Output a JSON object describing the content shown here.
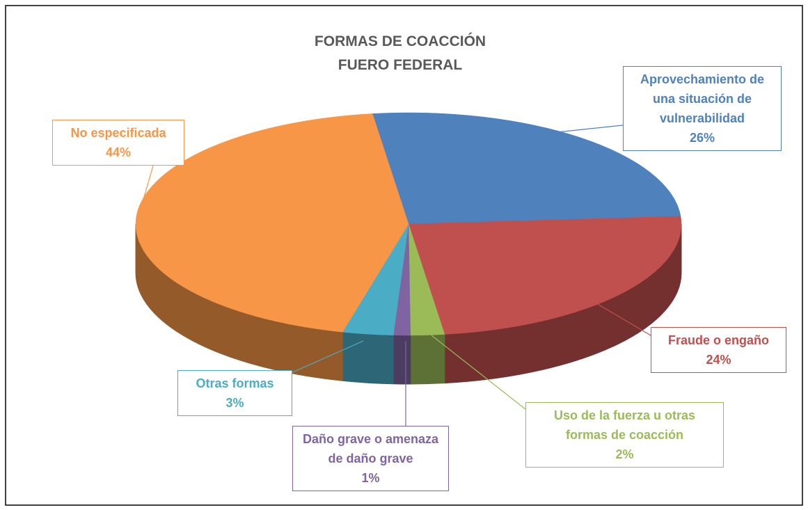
{
  "chart_data": {
    "type": "pie",
    "title": "FORMAS DE COACCIÓN",
    "subtitle": "FUERO FEDERAL",
    "categories": [
      "Aprovechamiento de una situación de vulnerabilidad",
      "Fraude o engaño",
      "Uso de la fuerza u otras formas de coacción",
      "Daño grave o amenaza de daño grave",
      "Otras formas",
      "No especificada"
    ],
    "values": [
      26,
      24,
      2,
      1,
      3,
      44
    ],
    "value_labels": [
      "26%",
      "24%",
      "2%",
      "1%",
      "3%",
      "44%"
    ],
    "colors": [
      "#4f81bd",
      "#c0504d",
      "#9bbb59",
      "#8064a2",
      "#4bacc6",
      "#f79646"
    ]
  }
}
